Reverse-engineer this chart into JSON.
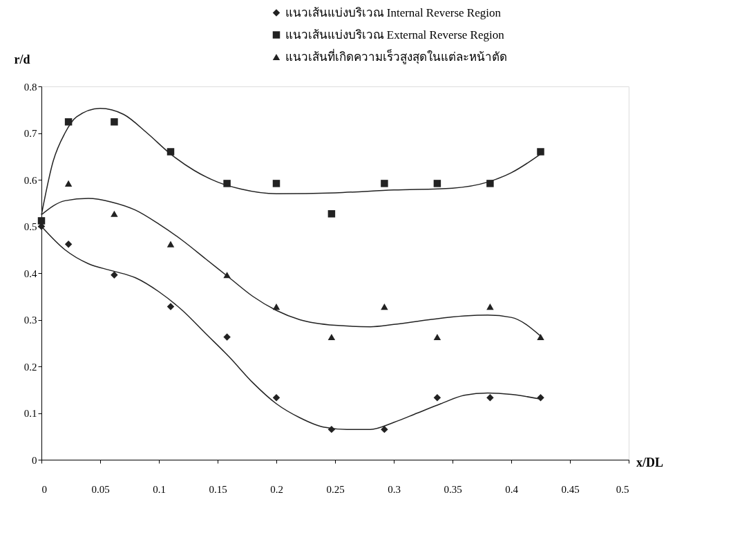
{
  "chart_data": {
    "type": "scatter",
    "xlabel": "x/DL",
    "ylabel": "r/d",
    "x": [
      0,
      0.023,
      0.062,
      0.11,
      0.158,
      0.2,
      0.247,
      0.292,
      0.337,
      0.382,
      0.425
    ],
    "series": [
      {
        "name": "แนวเส้นแบ่งบริเวณ Internal Reverse Region",
        "color": "#222222",
        "marker": "diamond",
        "values": [
          0.5,
          0.462,
          0.396,
          0.328,
          0.263,
          0.133,
          0.065,
          0.065,
          0.133,
          0.133,
          0.133
        ]
      },
      {
        "name": "แนวเส้นแบ่งบริเวณ External Reverse Region",
        "color": "#222222",
        "marker": "square",
        "values": [
          0.512,
          0.724,
          0.724,
          0.66,
          0.592,
          0.592,
          0.527,
          0.592,
          0.592,
          0.592,
          0.66
        ]
      },
      {
        "name": "แนวเส้นที่เกิดความเร็วสูงสุดในแต่ละหน้าตัด",
        "color": "#222222",
        "marker": "triangle",
        "values": [
          null,
          0.592,
          0.527,
          0.462,
          0.396,
          0.328,
          0.263,
          0.328,
          0.263,
          0.328,
          0.263
        ]
      },
      {
        "type": "line",
        "color": "#222222",
        "x": [
          0,
          0.01,
          0.02,
          0.03,
          0.05,
          0.07,
          0.09,
          0.11,
          0.13,
          0.15,
          0.17,
          0.2,
          0.25,
          0.3,
          0.35,
          0.38,
          0.4,
          0.425
        ],
        "values": [
          0.525,
          0.64,
          0.7,
          0.735,
          0.753,
          0.74,
          0.7,
          0.655,
          0.62,
          0.595,
          0.58,
          0.57,
          0.572,
          0.578,
          0.582,
          0.595,
          0.615,
          0.655
        ]
      },
      {
        "type": "line",
        "color": "#222222",
        "x": [
          0,
          0.02,
          0.04,
          0.06,
          0.08,
          0.1,
          0.12,
          0.14,
          0.16,
          0.18,
          0.2,
          0.22,
          0.25,
          0.28,
          0.3,
          0.33,
          0.36,
          0.38,
          0.4,
          0.425
        ],
        "values": [
          0.525,
          0.555,
          0.56,
          0.552,
          0.535,
          0.505,
          0.47,
          0.43,
          0.39,
          0.35,
          0.32,
          0.3,
          0.288,
          0.285,
          0.29,
          0.3,
          0.308,
          0.31,
          0.305,
          0.265
        ]
      },
      {
        "type": "line",
        "color": "#222222",
        "x": [
          0,
          0.02,
          0.04,
          0.06,
          0.08,
          0.1,
          0.12,
          0.14,
          0.16,
          0.18,
          0.2,
          0.22,
          0.24,
          0.26,
          0.28,
          0.3,
          0.32,
          0.34,
          0.36,
          0.38,
          0.4,
          0.425
        ],
        "values": [
          0.5,
          0.45,
          0.42,
          0.405,
          0.39,
          0.36,
          0.32,
          0.27,
          0.22,
          0.165,
          0.12,
          0.09,
          0.07,
          0.065,
          0.065,
          0.08,
          0.1,
          0.12,
          0.138,
          0.143,
          0.14,
          0.13
        ]
      }
    ],
    "xlim": [
      0,
      0.5
    ],
    "xticks": [
      0,
      0.05,
      0.1,
      0.15,
      0.2,
      0.25,
      0.3,
      0.35,
      0.4,
      0.45,
      0.5
    ],
    "ylim": [
      0,
      0.8
    ],
    "yticks": [
      0,
      0.1,
      0.2,
      0.3,
      0.4,
      0.5,
      0.6,
      0.7,
      0.8
    ],
    "grid": false,
    "legend": "top right"
  }
}
